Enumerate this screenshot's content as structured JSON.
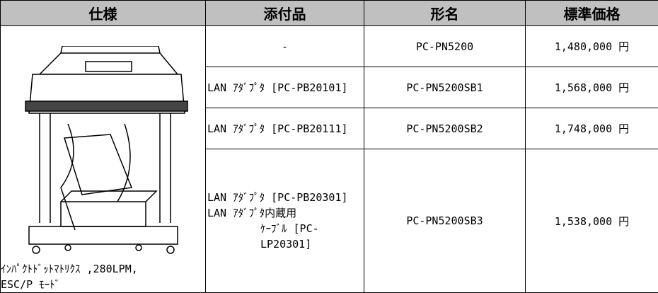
{
  "table": {
    "header": [
      "仕様",
      "添付品",
      "形名",
      "標準価格"
    ],
    "spec": [
      "ｲﾝﾊﾟｸﾄﾄﾞｯﾄﾏﾄﾘｸｽ ,280LPM,",
      "ESC/P ﾓｰﾄﾞ"
    ],
    "rows": [
      {
        "accessory": [
          "-"
        ],
        "model": "PC-PN5200",
        "price": "1,480,000 円"
      },
      {
        "accessory": [
          "LAN ｱﾀﾞﾌﾟﾀ [PC-PB20101]"
        ],
        "model": "PC-PN5200SB1",
        "price": "1,568,000 円"
      },
      {
        "accessory": [
          "LAN ｱﾀﾞﾌﾟﾀ [PC-PB20111]"
        ],
        "model": "PC-PN5200SB2",
        "price": "1,748,000 円"
      },
      {
        "accessory": [
          "LAN ｱﾀﾞﾌﾟﾀ [PC-PB20301]",
          "LAN ｱﾀﾞﾌﾟﾀ内蔵用",
          "ｹｰﾌﾞﾙ [PC-LP20301]"
        ],
        "model": "PC-PN5200SB3",
        "price": "1,538,000 円"
      }
    ]
  }
}
